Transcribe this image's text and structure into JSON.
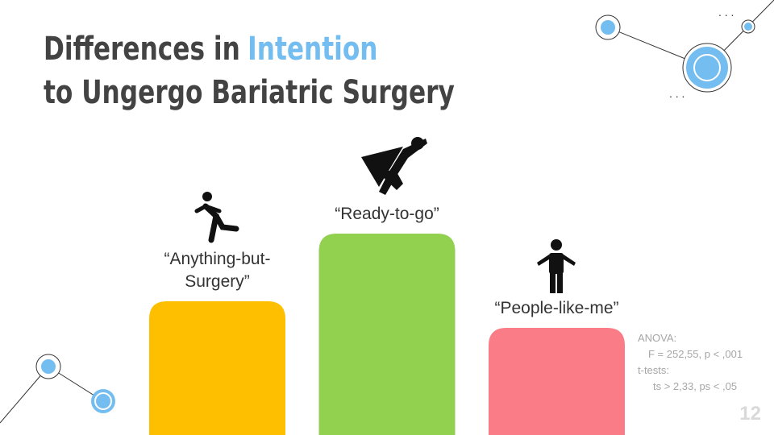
{
  "title": {
    "line1": "Differences in",
    "highlight": "Intention",
    "line2": "to Ungergo Bariatric Surgery"
  },
  "chart_data": {
    "type": "bar",
    "categories": [
      "“Anything-but-Surgery”",
      "“Ready-to-go”",
      "“People-like-me”"
    ],
    "values": [
      166,
      250,
      133
    ],
    "colors": [
      "#fdbf00",
      "#92d050",
      "#f97c87"
    ]
  },
  "stats": [
    "ANOVA:",
    "F = 252,55, p < ,001",
    "t-tests:",
    "ts > 2,33, ps < ,05"
  ],
  "page_number": "12"
}
